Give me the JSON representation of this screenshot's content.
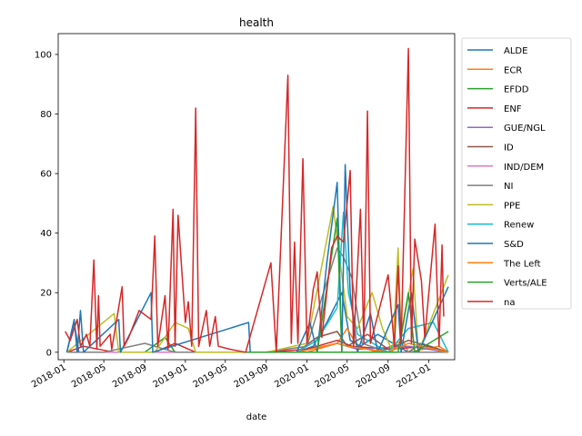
{
  "chart_data": {
    "type": "line",
    "title": "health",
    "xlabel": "date",
    "ylabel": "",
    "ylim": [
      -2.5,
      107
    ],
    "xlim": [
      "2017-12-15",
      "2021-03-20"
    ],
    "grid": false,
    "legend_position": "right",
    "y_ticks": [
      0,
      20,
      40,
      60,
      80,
      100
    ],
    "x_ticks": [
      "2018-01",
      "2018-05",
      "2018-09",
      "2019-01",
      "2019-05",
      "2019-09",
      "2020-01",
      "2020-05",
      "2020-09",
      "2021-01"
    ],
    "series": [
      {
        "name": "ALDE",
        "color": "#1f77b4",
        "points": [
          [
            "2018-01-10",
            0
          ],
          [
            "2018-02-01",
            10
          ],
          [
            "2018-02-15",
            0
          ],
          [
            "2018-06-20",
            0
          ],
          [
            "2018-09-01",
            0
          ],
          [
            "2019-07-10",
            0
          ],
          [
            "2019-09-01",
            0
          ],
          [
            "2019-12-01",
            0
          ],
          [
            "2020-01-20",
            2
          ],
          [
            "2020-03-01",
            10
          ],
          [
            "2020-04-15",
            20
          ],
          [
            "2020-05-10",
            4
          ],
          [
            "2020-06-10",
            2
          ],
          [
            "2020-08-01",
            6
          ],
          [
            "2020-11-01",
            0
          ],
          [
            "2020-12-10",
            3
          ],
          [
            "2021-03-01",
            0
          ]
        ]
      },
      {
        "name": "ECR",
        "color": "#ff7f0e",
        "points": [
          [
            "2018-01-10",
            0
          ],
          [
            "2018-05-01",
            0
          ],
          [
            "2018-09-01",
            0
          ],
          [
            "2019-03-01",
            0
          ],
          [
            "2019-09-01",
            0
          ],
          [
            "2020-01-01",
            0
          ],
          [
            "2020-04-01",
            3
          ],
          [
            "2020-05-01",
            8
          ],
          [
            "2020-06-01",
            2
          ],
          [
            "2020-08-01",
            0
          ],
          [
            "2020-10-15",
            4
          ],
          [
            "2020-11-01",
            0
          ],
          [
            "2021-02-01",
            2
          ],
          [
            "2021-03-01",
            0
          ]
        ]
      },
      {
        "name": "EFDD",
        "color": "#2ca02c",
        "points": [
          [
            "2018-01-10",
            0
          ],
          [
            "2018-04-01",
            0
          ],
          [
            "2018-09-01",
            0
          ],
          [
            "2018-11-01",
            5
          ],
          [
            "2018-12-01",
            0
          ],
          [
            "2019-04-01",
            0
          ],
          [
            "2019-09-01",
            0
          ],
          [
            "2019-12-01",
            0
          ],
          [
            "2020-04-01",
            0
          ],
          [
            "2020-09-01",
            0
          ],
          [
            "2021-03-01",
            0
          ]
        ]
      },
      {
        "name": "ENF",
        "color": "#d62728",
        "points": [
          [
            "2018-01-10",
            0
          ],
          [
            "2018-03-01",
            2
          ],
          [
            "2018-06-01",
            0
          ],
          [
            "2018-10-01",
            0
          ],
          [
            "2018-12-01",
            3
          ],
          [
            "2019-02-01",
            0
          ],
          [
            "2019-05-01",
            0
          ],
          [
            "2019-09-01",
            0
          ],
          [
            "2020-01-01",
            1
          ],
          [
            "2020-04-01",
            4
          ],
          [
            "2020-05-15",
            2
          ],
          [
            "2020-09-01",
            1
          ],
          [
            "2021-01-01",
            2
          ],
          [
            "2021-03-01",
            0
          ]
        ]
      },
      {
        "name": "GUE/NGL",
        "color": "#9467bd",
        "points": [
          [
            "2018-01-10",
            0
          ],
          [
            "2018-06-01",
            0
          ],
          [
            "2018-12-01",
            0
          ],
          [
            "2019-06-01",
            0
          ],
          [
            "2019-12-01",
            0
          ],
          [
            "2020-04-01",
            3
          ],
          [
            "2020-06-01",
            1
          ],
          [
            "2020-11-01",
            2
          ],
          [
            "2021-03-01",
            0
          ]
        ]
      },
      {
        "name": "ID",
        "color": "#8c564b",
        "points": [
          [
            "2019-07-01",
            0
          ],
          [
            "2019-12-01",
            0
          ],
          [
            "2020-02-01",
            5
          ],
          [
            "2020-04-01",
            7
          ],
          [
            "2020-05-01",
            2
          ],
          [
            "2020-07-01",
            6
          ],
          [
            "2020-09-01",
            1
          ],
          [
            "2020-11-01",
            4
          ],
          [
            "2021-03-01",
            0
          ]
        ]
      },
      {
        "name": "IND/DEM",
        "color": "#e377c2",
        "points": [
          [
            "2018-01-10",
            0
          ],
          [
            "2018-06-01",
            0
          ],
          [
            "2018-12-01",
            0
          ],
          [
            "2019-06-01",
            0
          ]
        ]
      },
      {
        "name": "NI",
        "color": "#7f7f7f",
        "points": [
          [
            "2018-01-10",
            0
          ],
          [
            "2018-05-01",
            0
          ],
          [
            "2018-09-01",
            3
          ],
          [
            "2018-12-01",
            0
          ],
          [
            "2019-04-01",
            0
          ],
          [
            "2019-09-01",
            0
          ],
          [
            "2020-01-01",
            2
          ],
          [
            "2020-04-01",
            35
          ],
          [
            "2020-04-20",
            32
          ],
          [
            "2020-05-15",
            25
          ],
          [
            "2020-06-15",
            3
          ],
          [
            "2020-09-01",
            0
          ],
          [
            "2021-03-01",
            0
          ]
        ]
      },
      {
        "name": "PPE",
        "color": "#bcbd22",
        "points": [
          [
            "2018-01-10",
            0
          ],
          [
            "2018-06-01",
            13
          ],
          [
            "2018-06-15",
            0
          ],
          [
            "2018-10-01",
            0
          ],
          [
            "2018-12-01",
            10
          ],
          [
            "2019-01-10",
            8
          ],
          [
            "2019-02-01",
            0
          ],
          [
            "2019-06-01",
            0
          ],
          [
            "2019-09-01",
            0
          ],
          [
            "2020-01-01",
            3
          ],
          [
            "2020-03-20",
            49
          ],
          [
            "2020-04-10",
            30
          ],
          [
            "2020-05-01",
            12
          ],
          [
            "2020-06-01",
            8
          ],
          [
            "2020-07-15",
            20
          ],
          [
            "2020-08-15",
            8
          ],
          [
            "2020-09-15",
            0
          ],
          [
            "2020-10-01",
            35
          ],
          [
            "2020-10-10",
            5
          ],
          [
            "2020-11-15",
            28
          ],
          [
            "2020-12-01",
            0
          ],
          [
            "2021-03-01",
            26
          ]
        ]
      },
      {
        "name": "Renew",
        "color": "#17becf",
        "points": [
          [
            "2019-07-01",
            0
          ],
          [
            "2019-12-01",
            0
          ],
          [
            "2020-02-01",
            4
          ],
          [
            "2020-04-01",
            15
          ],
          [
            "2020-04-20",
            47
          ],
          [
            "2020-05-05",
            20
          ],
          [
            "2020-06-01",
            6
          ],
          [
            "2020-09-01",
            0
          ],
          [
            "2020-11-01",
            8
          ],
          [
            "2021-01-15",
            10
          ],
          [
            "2021-03-01",
            0
          ]
        ]
      },
      {
        "name": "S&D",
        "color": "#1f77b4",
        "points": [
          [
            "2018-01-10",
            0
          ],
          [
            "2018-02-01",
            11
          ],
          [
            "2018-02-10",
            0
          ],
          [
            "2018-02-20",
            14
          ],
          [
            "2018-03-01",
            0
          ],
          [
            "2018-06-15",
            11
          ],
          [
            "2018-06-20",
            0
          ],
          [
            "2018-09-20",
            20
          ],
          [
            "2018-09-25",
            0
          ],
          [
            "2019-07-10",
            10
          ],
          [
            "2019-07-15",
            0
          ],
          [
            "2019-12-01",
            0
          ],
          [
            "2020-01-10",
            10
          ],
          [
            "2020-02-01",
            0
          ],
          [
            "2020-03-01",
            30
          ],
          [
            "2020-04-01",
            57
          ],
          [
            "2020-04-15",
            0
          ],
          [
            "2020-04-25",
            63
          ],
          [
            "2020-05-10",
            20
          ],
          [
            "2020-06-01",
            0
          ],
          [
            "2020-07-10",
            13
          ],
          [
            "2020-08-01",
            0
          ],
          [
            "2020-10-01",
            16
          ],
          [
            "2020-10-10",
            0
          ],
          [
            "2020-11-10",
            20
          ],
          [
            "2020-12-01",
            0
          ],
          [
            "2021-03-01",
            22
          ]
        ]
      },
      {
        "name": "The Left",
        "color": "#ff7f0e",
        "points": [
          [
            "2019-07-01",
            0
          ],
          [
            "2019-12-01",
            0
          ],
          [
            "2020-04-01",
            3
          ],
          [
            "2020-05-01",
            2
          ],
          [
            "2020-09-01",
            0
          ],
          [
            "2020-11-01",
            3
          ],
          [
            "2021-03-01",
            0
          ]
        ]
      },
      {
        "name": "Verts/ALE",
        "color": "#2ca02c",
        "points": [
          [
            "2019-07-01",
            0
          ],
          [
            "2019-12-01",
            0
          ],
          [
            "2020-02-01",
            0
          ],
          [
            "2020-04-01",
            45
          ],
          [
            "2020-04-15",
            0
          ],
          [
            "2020-05-01",
            0
          ],
          [
            "2020-07-01",
            0
          ],
          [
            "2020-10-01",
            0
          ],
          [
            "2020-11-01",
            20
          ],
          [
            "2020-11-20",
            0
          ],
          [
            "2021-03-01",
            7
          ]
        ]
      },
      {
        "name": "na",
        "color": "#d62728",
        "points": [
          [
            "2018-01-05",
            7
          ],
          [
            "2018-01-20",
            4
          ],
          [
            "2018-02-10",
            11
          ],
          [
            "2018-02-20",
            2
          ],
          [
            "2018-03-10",
            6
          ],
          [
            "2018-03-20",
            2
          ],
          [
            "2018-04-01",
            31
          ],
          [
            "2018-04-10",
            1
          ],
          [
            "2018-04-15",
            19
          ],
          [
            "2018-04-20",
            2
          ],
          [
            "2018-05-20",
            6
          ],
          [
            "2018-05-25",
            1
          ],
          [
            "2018-06-25",
            22
          ],
          [
            "2018-07-01",
            2
          ],
          [
            "2018-07-15",
            5
          ],
          [
            "2018-08-15",
            14
          ],
          [
            "2018-09-20",
            11
          ],
          [
            "2018-10-01",
            39
          ],
          [
            "2018-10-10",
            2
          ],
          [
            "2018-11-01",
            19
          ],
          [
            "2018-11-10",
            1
          ],
          [
            "2018-11-25",
            48
          ],
          [
            "2018-12-01",
            2
          ],
          [
            "2018-12-10",
            46
          ],
          [
            "2019-01-01",
            10
          ],
          [
            "2019-01-10",
            17
          ],
          [
            "2019-01-20",
            2
          ],
          [
            "2019-02-01",
            82
          ],
          [
            "2019-02-10",
            2
          ],
          [
            "2019-03-05",
            14
          ],
          [
            "2019-03-15",
            2
          ],
          [
            "2019-04-01",
            12
          ],
          [
            "2019-04-10",
            2
          ],
          [
            "2019-05-15",
            1
          ],
          [
            "2019-07-01",
            0
          ],
          [
            "2019-09-15",
            30
          ],
          [
            "2019-10-01",
            0
          ],
          [
            "2019-11-05",
            93
          ],
          [
            "2019-11-15",
            3
          ],
          [
            "2019-11-25",
            37
          ],
          [
            "2019-12-05",
            3
          ],
          [
            "2019-12-20",
            65
          ],
          [
            "2020-01-01",
            3
          ],
          [
            "2020-01-20",
            21
          ],
          [
            "2020-02-01",
            27
          ],
          [
            "2020-02-15",
            5
          ],
          [
            "2020-03-15",
            35
          ],
          [
            "2020-04-01",
            39
          ],
          [
            "2020-04-20",
            37
          ],
          [
            "2020-05-10",
            61
          ],
          [
            "2020-05-20",
            2
          ],
          [
            "2020-06-10",
            48
          ],
          [
            "2020-06-20",
            3
          ],
          [
            "2020-07-01",
            81
          ],
          [
            "2020-07-10",
            3
          ],
          [
            "2020-09-01",
            26
          ],
          [
            "2020-09-20",
            2
          ],
          [
            "2020-10-01",
            29
          ],
          [
            "2020-10-10",
            3
          ],
          [
            "2020-11-01",
            102
          ],
          [
            "2020-11-10",
            3
          ],
          [
            "2020-11-20",
            38
          ],
          [
            "2020-12-10",
            24
          ],
          [
            "2020-12-20",
            5
          ],
          [
            "2021-01-20",
            43
          ],
          [
            "2021-02-01",
            2
          ],
          [
            "2021-02-10",
            36
          ],
          [
            "2021-02-15",
            12
          ]
        ]
      }
    ]
  }
}
